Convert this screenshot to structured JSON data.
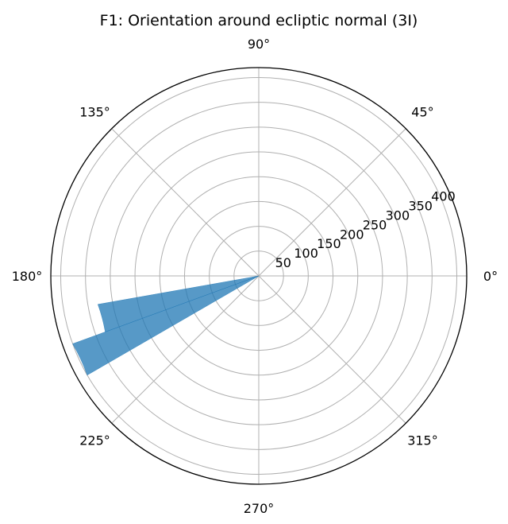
{
  "chart_data": {
    "type": "bar",
    "subtype": "polar-histogram",
    "title": "F1: Orientation around ecliptic normal (3I)",
    "angle_ticks": [
      "0°",
      "45°",
      "90°",
      "135°",
      "180°",
      "225°",
      "270°",
      "315°"
    ],
    "angle_tick_values_deg": [
      0,
      45,
      90,
      135,
      180,
      225,
      270,
      315
    ],
    "radial_ticks": [
      "50",
      "100",
      "150",
      "200",
      "250",
      "300",
      "350",
      "400"
    ],
    "radial_tick_values": [
      50,
      100,
      150,
      200,
      250,
      300,
      350,
      400
    ],
    "rlim": [
      0,
      420
    ],
    "grid": true,
    "bin_edges_deg": [
      190,
      200,
      210
    ],
    "values": [
      330,
      400
    ],
    "bar_color": "#1f77b4",
    "bar_alpha": 0.75
  }
}
